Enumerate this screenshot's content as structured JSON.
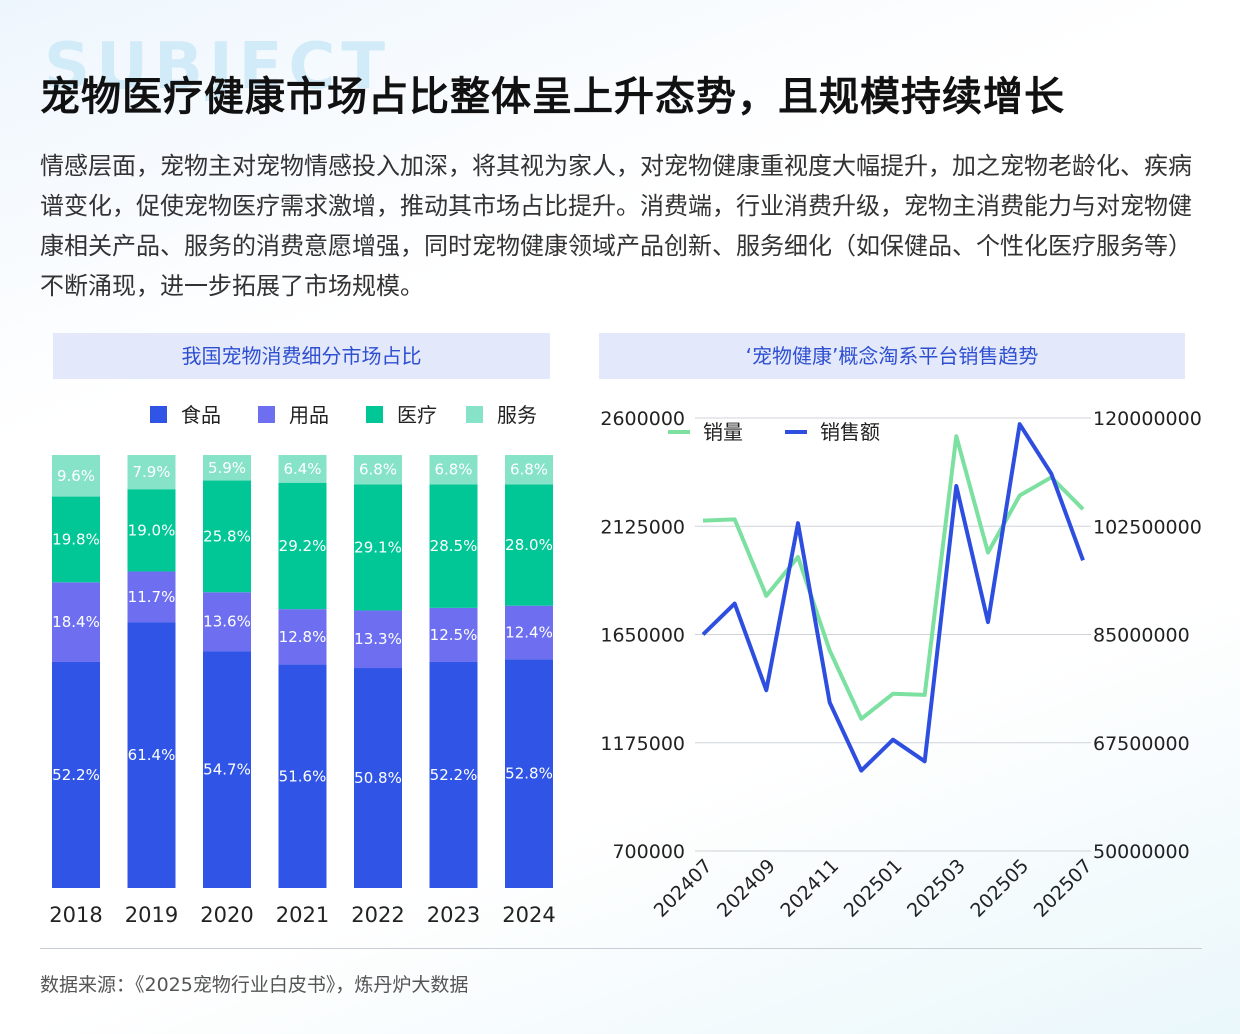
{
  "watermark": "SUBJECT",
  "title": "宠物医疗健康市场占比整体呈上升态势，且规模持续增长",
  "description": "情感层面，宠物主对宠物情感投入加深，将其视为家人，对宠物健康重视度大幅提升，加之宠物老龄化、疾病谱变化，促使宠物医疗需求激增，推动其市场占比提升。消费端，行业消费升级，宠物主消费能力与对宠物健康相关产品、服务的消费意愿增强，同时宠物健康领域产品创新、服务细化（如保健品、个性化医疗服务等）不断涌现，进一步拓展了市场规模。",
  "source": "数据来源：《2025宠物行业白皮书》，炼丹炉大数据",
  "chart_data": [
    {
      "type": "bar",
      "stacked": true,
      "title": "我国宠物消费细分市场占比",
      "categories": [
        "2018",
        "2019",
        "2020",
        "2021",
        "2022",
        "2023",
        "2024"
      ],
      "series": [
        {
          "name": "食品",
          "color": "#2f54e6",
          "values": [
            52.2,
            61.4,
            54.7,
            51.6,
            50.8,
            52.2,
            52.8
          ]
        },
        {
          "name": "用品",
          "color": "#6d6ff0",
          "values": [
            18.4,
            11.7,
            13.6,
            12.8,
            13.3,
            12.5,
            12.4
          ]
        },
        {
          "name": "医疗",
          "color": "#00c795",
          "values": [
            19.8,
            19.0,
            25.8,
            29.2,
            29.1,
            28.5,
            28.0
          ]
        },
        {
          "name": "服务",
          "color": "#86e3c7",
          "values": [
            9.6,
            7.9,
            5.9,
            6.4,
            6.8,
            6.8,
            6.8
          ]
        }
      ],
      "unit": "%",
      "legend": "top"
    },
    {
      "type": "line",
      "title": "‘宠物健康’概念淘系平台销售趋势",
      "x": [
        "202407",
        "202408",
        "202409",
        "202410",
        "202411",
        "202412",
        "202501",
        "202502",
        "202503",
        "202504",
        "202505",
        "202506",
        "202507"
      ],
      "x_tick_labels": [
        "202407",
        "202409",
        "202411",
        "202501",
        "202503",
        "202505",
        "202507"
      ],
      "y_left": {
        "ticks": [
          "2600000",
          "2125000",
          "1650000",
          "1175000",
          "700000"
        ],
        "range": [
          700000,
          2600000
        ]
      },
      "y_right": {
        "ticks": [
          "120000000",
          "102500000",
          "85000000",
          "67500000",
          "50000000"
        ],
        "range": [
          50000000,
          120000000
        ]
      },
      "series": [
        {
          "name": "销量",
          "axis": "left",
          "color": "#7be0a0",
          "values": [
            2150000,
            2155000,
            1820000,
            1990000,
            1580000,
            1280000,
            1390000,
            1385000,
            2520000,
            2010000,
            2260000,
            2340000,
            2200000
          ]
        },
        {
          "name": "销售额",
          "axis": "right",
          "color": "#2e4ee0",
          "values": [
            85000000,
            90000000,
            76000000,
            103000000,
            74000000,
            63000000,
            68000000,
            64500000,
            109000000,
            87000000,
            119000000,
            111000000,
            97000000
          ]
        }
      ],
      "grid": true,
      "legend": "top-left"
    }
  ]
}
